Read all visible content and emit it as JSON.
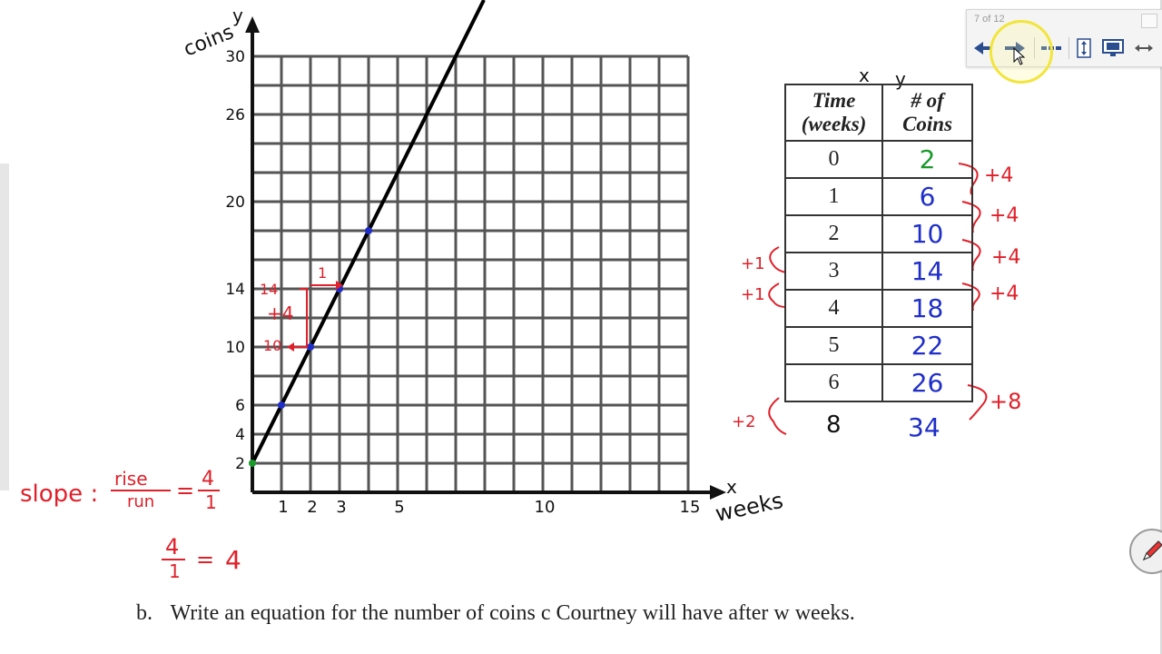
{
  "graph": {
    "y_axis_label": "coins",
    "y_axis_letter": "y",
    "x_axis_label": "weeks",
    "x_axis_letter": "x",
    "y_ticks": [
      "30",
      "26",
      "20",
      "14",
      "10",
      "6",
      "4",
      "2"
    ],
    "x_ticks": [
      "1",
      "2",
      "3",
      "5",
      "10",
      "15"
    ],
    "points": [
      {
        "weeks": 0,
        "coins": 2
      },
      {
        "weeks": 1,
        "coins": 6
      },
      {
        "weeks": 2,
        "coins": 10
      },
      {
        "weeks": 3,
        "coins": 14
      },
      {
        "weeks": 4,
        "coins": 18
      }
    ],
    "line": {
      "slope": 4,
      "intercept": 2
    },
    "annotation": {
      "run": "1",
      "rise": "+4",
      "y_top": "14",
      "y_bottom": "10"
    }
  },
  "slope_work": {
    "label": "slope :",
    "rise": "rise",
    "run": "run",
    "equals": "=",
    "num": "4",
    "den": "1",
    "result_num": "4",
    "result_den": "1",
    "result": "4"
  },
  "table": {
    "axis_x": "x",
    "axis_y": "y",
    "headers": [
      "Time (weeks)",
      "# of Coins"
    ],
    "rows": [
      {
        "time": "0",
        "coins": "2"
      },
      {
        "time": "1",
        "coins": "6"
      },
      {
        "time": "2",
        "coins": "10"
      },
      {
        "time": "3",
        "coins": "14"
      },
      {
        "time": "4",
        "coins": "18"
      },
      {
        "time": "5",
        "coins": "22"
      },
      {
        "time": "6",
        "coins": "26"
      }
    ],
    "extra_row": {
      "time": "8",
      "coins": "34"
    },
    "right_increments": [
      "+4",
      "+4",
      "+4",
      "+4",
      "+8"
    ],
    "left_increments": [
      "+1",
      "+1",
      "+2"
    ]
  },
  "toolbar": {
    "page_indicator": "7 of 12",
    "prev_icon": "arrow-left-icon",
    "next_icon": "arrow-right-icon"
  },
  "question": {
    "label": "b.",
    "text": "Write an equation for the number of coins c Courtney will have after w weeks."
  }
}
